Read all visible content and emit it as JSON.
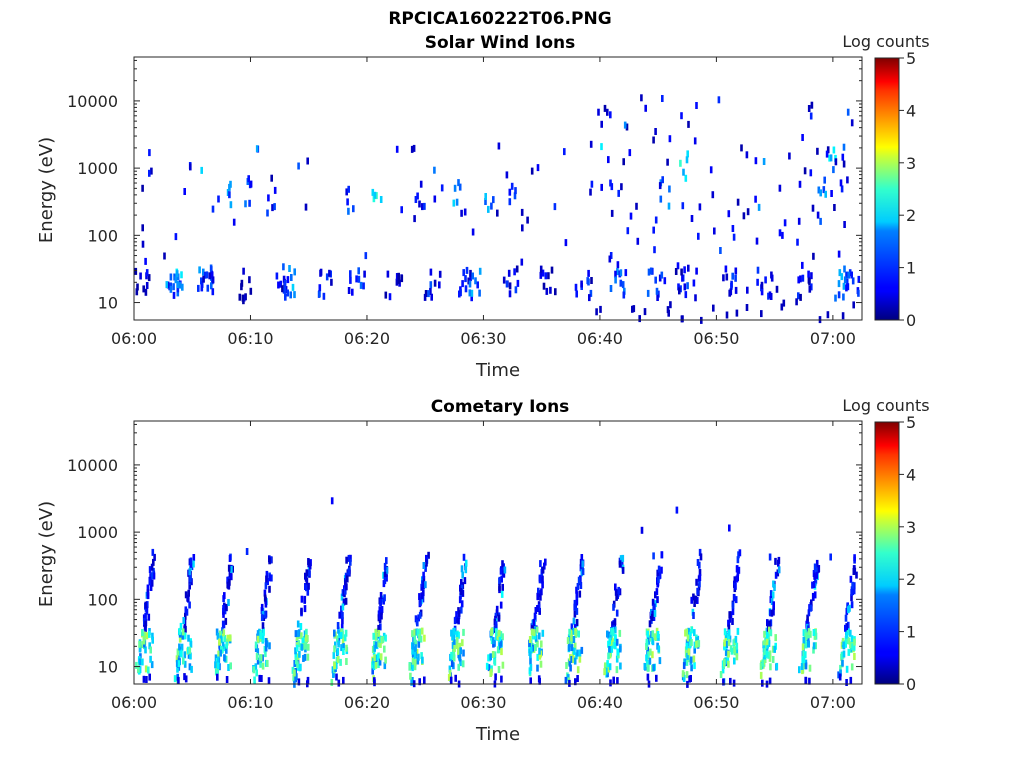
{
  "figure": {
    "suptitle": "RPCICA160222T06.PNG"
  },
  "chart_data": [
    {
      "type": "heatmap",
      "title": "Solar Wind Ions",
      "xlabel": "Time",
      "ylabel": "Energy (eV)",
      "xlim_minutes": [
        0,
        62.5
      ],
      "ylim": [
        5.5,
        45000
      ],
      "y_scale": "log",
      "x_ticks": [
        "06:00",
        "06:10",
        "06:20",
        "06:30",
        "06:40",
        "06:50",
        "07:00"
      ],
      "y_ticks": [
        "10",
        "100",
        "1000",
        "10000"
      ],
      "colorbar": {
        "label": "Log counts",
        "range": [
          0,
          5
        ],
        "ticks": [
          "0",
          "1",
          "2",
          "3",
          "4",
          "5"
        ],
        "colormap": "jet"
      },
      "bursts_minutes_energy_logcount": [
        [
          0.5,
          22,
          0.8
        ],
        [
          3.2,
          22,
          1.3
        ],
        [
          3.4,
          26,
          1.8
        ],
        [
          6.1,
          22,
          1.5
        ],
        [
          6.4,
          24,
          1.2
        ],
        [
          9.5,
          20,
          0.6
        ],
        [
          12.5,
          22,
          1.0
        ],
        [
          13.0,
          24,
          1.7
        ],
        [
          16.2,
          22,
          1.1
        ],
        [
          19.0,
          22,
          1.2
        ],
        [
          22.2,
          22,
          0.8
        ],
        [
          25.5,
          22,
          1.1
        ],
        [
          28.5,
          22,
          0.9
        ],
        [
          29.0,
          24,
          1.6
        ],
        [
          32.2,
          22,
          1.0
        ],
        [
          35.5,
          22,
          0.8
        ],
        [
          38.5,
          22,
          1.0
        ],
        [
          41.5,
          22,
          1.4
        ],
        [
          44.5,
          22,
          1.3
        ],
        [
          47.5,
          22,
          1.3
        ],
        [
          51.0,
          22,
          1.2
        ],
        [
          54.0,
          22,
          1.1
        ],
        [
          57.5,
          22,
          1.0
        ],
        [
          60.8,
          22,
          1.6
        ],
        [
          61.5,
          24,
          1.2
        ]
      ],
      "mid_energy_bursts": [
        [
          8.0,
          450,
          1.5
        ],
        [
          9.8,
          520,
          1.3
        ],
        [
          11.8,
          380,
          1.0
        ],
        [
          18.5,
          380,
          1.2
        ],
        [
          20.8,
          420,
          2.4
        ],
        [
          24.5,
          400,
          1.0
        ],
        [
          27.5,
          450,
          1.8
        ],
        [
          30.5,
          330,
          1.7
        ],
        [
          32.5,
          480,
          1.0
        ],
        [
          45.5,
          480,
          1.5
        ],
        [
          47.0,
          1200,
          2.2
        ],
        [
          59.0,
          500,
          1.7
        ],
        [
          59.7,
          1400,
          1.9
        ]
      ]
    },
    {
      "type": "heatmap",
      "title": "Cometary Ions",
      "xlabel": "Time",
      "ylabel": "Energy (eV)",
      "xlim_minutes": [
        0,
        62.5
      ],
      "ylim": [
        5.5,
        45000
      ],
      "y_scale": "log",
      "x_ticks": [
        "06:00",
        "06:10",
        "06:20",
        "06:30",
        "06:40",
        "06:50",
        "07:00"
      ],
      "y_ticks": [
        "10",
        "100",
        "1000",
        "10000"
      ],
      "colorbar": {
        "label": "Log counts",
        "range": [
          0,
          5
        ],
        "ticks": [
          "0",
          "1",
          "2",
          "3",
          "4",
          "5"
        ],
        "colormap": "jet"
      },
      "sweep_period_minutes": 3.35,
      "sweep_energy_range": [
        8,
        450
      ],
      "low_energy_peak_logcount": 2.8,
      "isolated_points": [
        [
          16.9,
          3300,
          0.6
        ],
        [
          9.6,
          580,
          0.8
        ],
        [
          46.5,
          2400,
          0.7
        ],
        [
          51.0,
          1300,
          0.6
        ],
        [
          43.5,
          1200,
          0.5
        ],
        [
          44.5,
          500,
          0.9
        ],
        [
          54.5,
          480,
          0.8
        ],
        [
          59.7,
          480,
          0.8
        ]
      ]
    }
  ]
}
